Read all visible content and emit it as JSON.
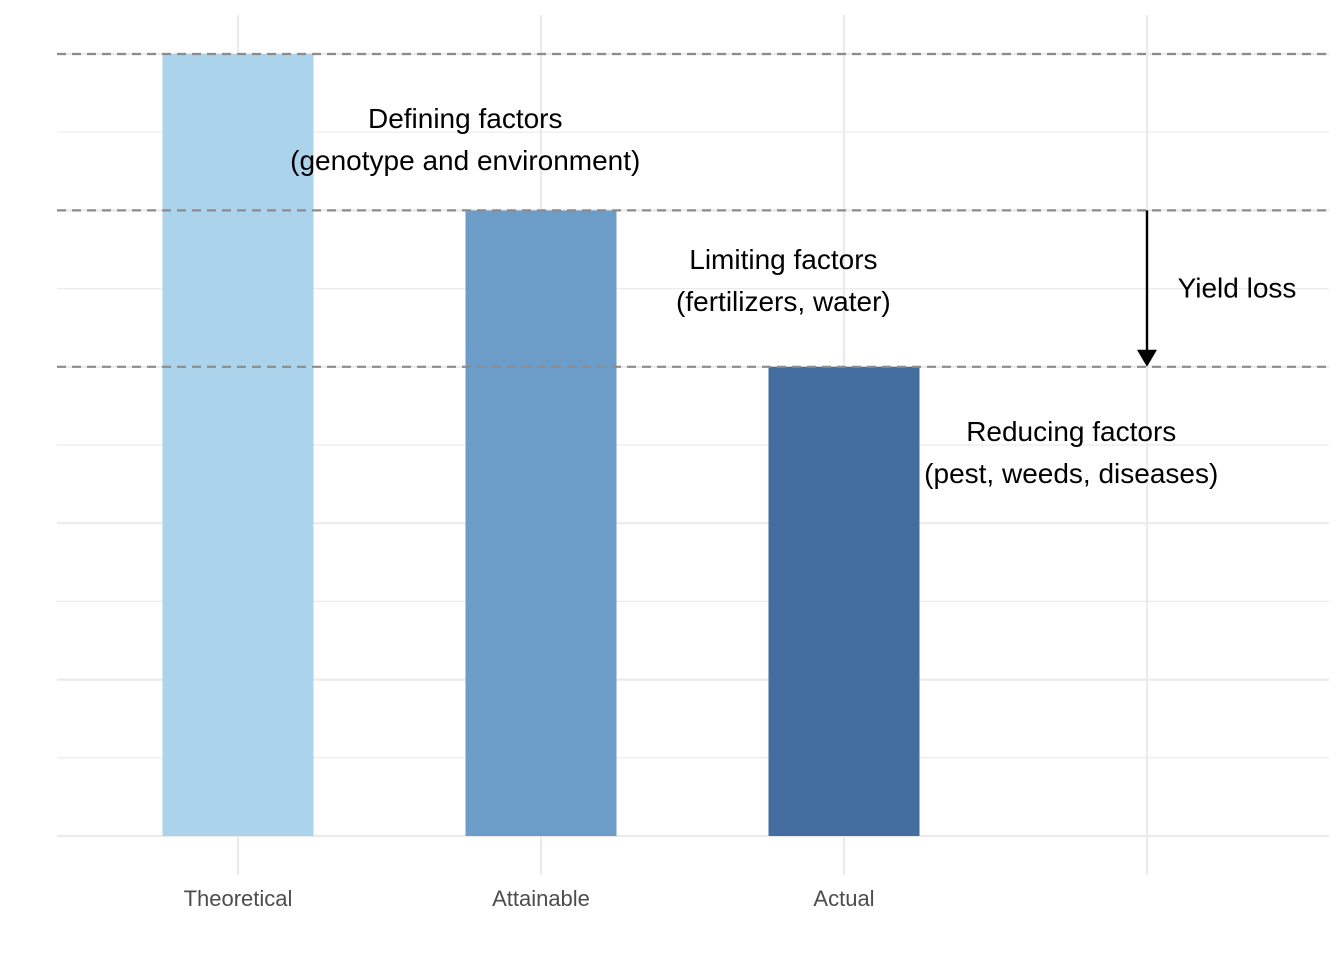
{
  "chart_data": {
    "type": "bar",
    "categories": [
      "Theoretical",
      "Attainable",
      "Actual",
      ""
    ],
    "values": [
      10,
      8,
      6,
      null
    ],
    "colors": [
      "#acd3ec",
      "#6c9dc8",
      "#426d9e"
    ],
    "ylim": [
      0,
      10
    ],
    "title": "",
    "xlabel": "",
    "ylabel": "",
    "y_axis_labels": false,
    "grid": true,
    "reference_lines": [
      10,
      8,
      6
    ],
    "annotations": [
      {
        "lines": [
          "Defining factors",
          "(genotype and environment)"
        ],
        "x_pos": 0.75,
        "y": 8.9
      },
      {
        "lines": [
          "Limiting factors",
          "(fertilizers, water)"
        ],
        "x_pos": 1.8,
        "y": 7.1
      },
      {
        "lines": [
          "Reducing factors",
          "(pest, weeds, diseases)"
        ],
        "x_pos": 2.75,
        "y": 4.9
      }
    ],
    "arrow": {
      "label": "Yield loss",
      "x_pos": 3,
      "from": 8,
      "to": 6
    }
  }
}
